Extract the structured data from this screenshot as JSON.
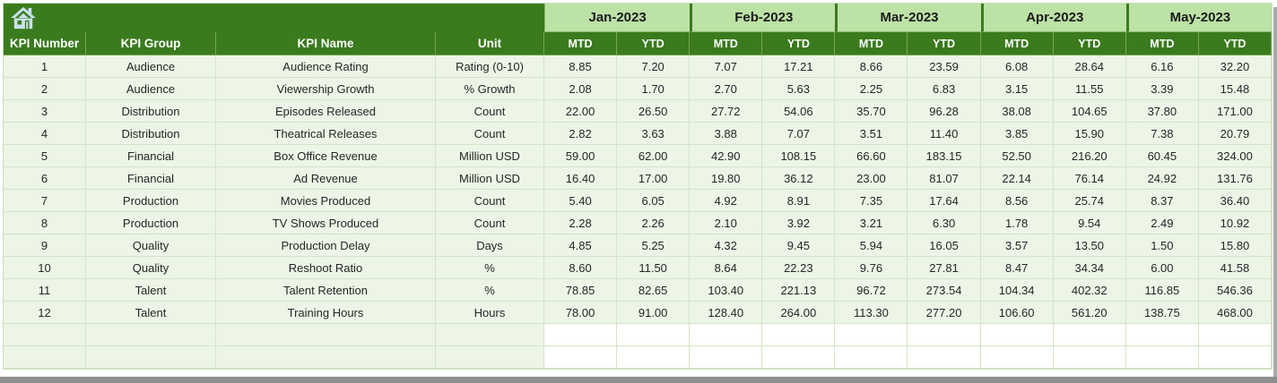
{
  "colors": {
    "header_green": "#3a7b1d",
    "month_band_green": "#bce2a6",
    "row_light_green": "#edf5e7",
    "grid_line_green": "#d3e5c6",
    "home_icon_blue": "#c9e2ee",
    "window_edge_gray": "#8f8f8f"
  },
  "table": {
    "left_headers": [
      "KPI Number",
      "KPI Group",
      "KPI Name",
      "Unit"
    ],
    "months": [
      "Jan-2023",
      "Feb-2023",
      "Mar-2023",
      "Apr-2023",
      "May-2023"
    ],
    "period_headers": [
      "MTD",
      "YTD"
    ],
    "rows": [
      {
        "kpi_number": "1",
        "kpi_group": "Audience",
        "kpi_name": "Audience Rating",
        "unit": "Rating (0-10)",
        "values": [
          "8.85",
          "7.20",
          "7.07",
          "17.21",
          "8.66",
          "23.59",
          "6.08",
          "28.64",
          "6.16",
          "32.20"
        ]
      },
      {
        "kpi_number": "2",
        "kpi_group": "Audience",
        "kpi_name": "Viewership Growth",
        "unit": "% Growth",
        "values": [
          "2.08",
          "1.70",
          "2.70",
          "5.63",
          "2.25",
          "6.83",
          "3.15",
          "11.55",
          "3.39",
          "15.48"
        ]
      },
      {
        "kpi_number": "3",
        "kpi_group": "Distribution",
        "kpi_name": "Episodes Released",
        "unit": "Count",
        "values": [
          "22.00",
          "26.50",
          "27.72",
          "54.06",
          "35.70",
          "96.28",
          "38.08",
          "104.65",
          "37.80",
          "171.00"
        ]
      },
      {
        "kpi_number": "4",
        "kpi_group": "Distribution",
        "kpi_name": "Theatrical Releases",
        "unit": "Count",
        "values": [
          "2.82",
          "3.63",
          "3.88",
          "7.07",
          "3.51",
          "11.40",
          "3.85",
          "15.90",
          "7.38",
          "20.79"
        ]
      },
      {
        "kpi_number": "5",
        "kpi_group": "Financial",
        "kpi_name": "Box Office Revenue",
        "unit": "Million USD",
        "values": [
          "59.00",
          "62.00",
          "42.90",
          "108.15",
          "66.60",
          "183.15",
          "52.50",
          "216.20",
          "60.45",
          "324.00"
        ]
      },
      {
        "kpi_number": "6",
        "kpi_group": "Financial",
        "kpi_name": "Ad Revenue",
        "unit": "Million USD",
        "values": [
          "16.40",
          "17.00",
          "19.80",
          "36.12",
          "23.00",
          "81.07",
          "22.14",
          "76.14",
          "24.92",
          "131.76"
        ]
      },
      {
        "kpi_number": "7",
        "kpi_group": "Production",
        "kpi_name": "Movies Produced",
        "unit": "Count",
        "values": [
          "5.40",
          "6.05",
          "4.92",
          "8.91",
          "7.35",
          "17.64",
          "8.56",
          "25.74",
          "8.37",
          "36.40"
        ]
      },
      {
        "kpi_number": "8",
        "kpi_group": "Production",
        "kpi_name": "TV Shows Produced",
        "unit": "Count",
        "values": [
          "2.28",
          "2.26",
          "2.10",
          "3.92",
          "3.21",
          "6.30",
          "1.78",
          "9.54",
          "2.49",
          "10.92"
        ]
      },
      {
        "kpi_number": "9",
        "kpi_group": "Quality",
        "kpi_name": "Production Delay",
        "unit": "Days",
        "values": [
          "4.85",
          "5.25",
          "4.32",
          "9.45",
          "5.94",
          "16.05",
          "3.57",
          "13.50",
          "1.50",
          "15.80"
        ]
      },
      {
        "kpi_number": "10",
        "kpi_group": "Quality",
        "kpi_name": "Reshoot Ratio",
        "unit": "%",
        "values": [
          "8.60",
          "11.50",
          "8.64",
          "22.23",
          "9.76",
          "27.81",
          "8.47",
          "34.34",
          "6.00",
          "41.58"
        ]
      },
      {
        "kpi_number": "11",
        "kpi_group": "Talent",
        "kpi_name": "Talent Retention",
        "unit": "%",
        "values": [
          "78.85",
          "82.65",
          "103.40",
          "221.13",
          "96.72",
          "273.54",
          "104.34",
          "402.32",
          "116.85",
          "546.36"
        ]
      },
      {
        "kpi_number": "12",
        "kpi_group": "Talent",
        "kpi_name": "Training Hours",
        "unit": "Hours",
        "values": [
          "78.00",
          "91.00",
          "128.40",
          "264.00",
          "113.30",
          "277.20",
          "106.60",
          "561.20",
          "138.75",
          "468.00"
        ]
      }
    ],
    "empty_rows": 2
  }
}
